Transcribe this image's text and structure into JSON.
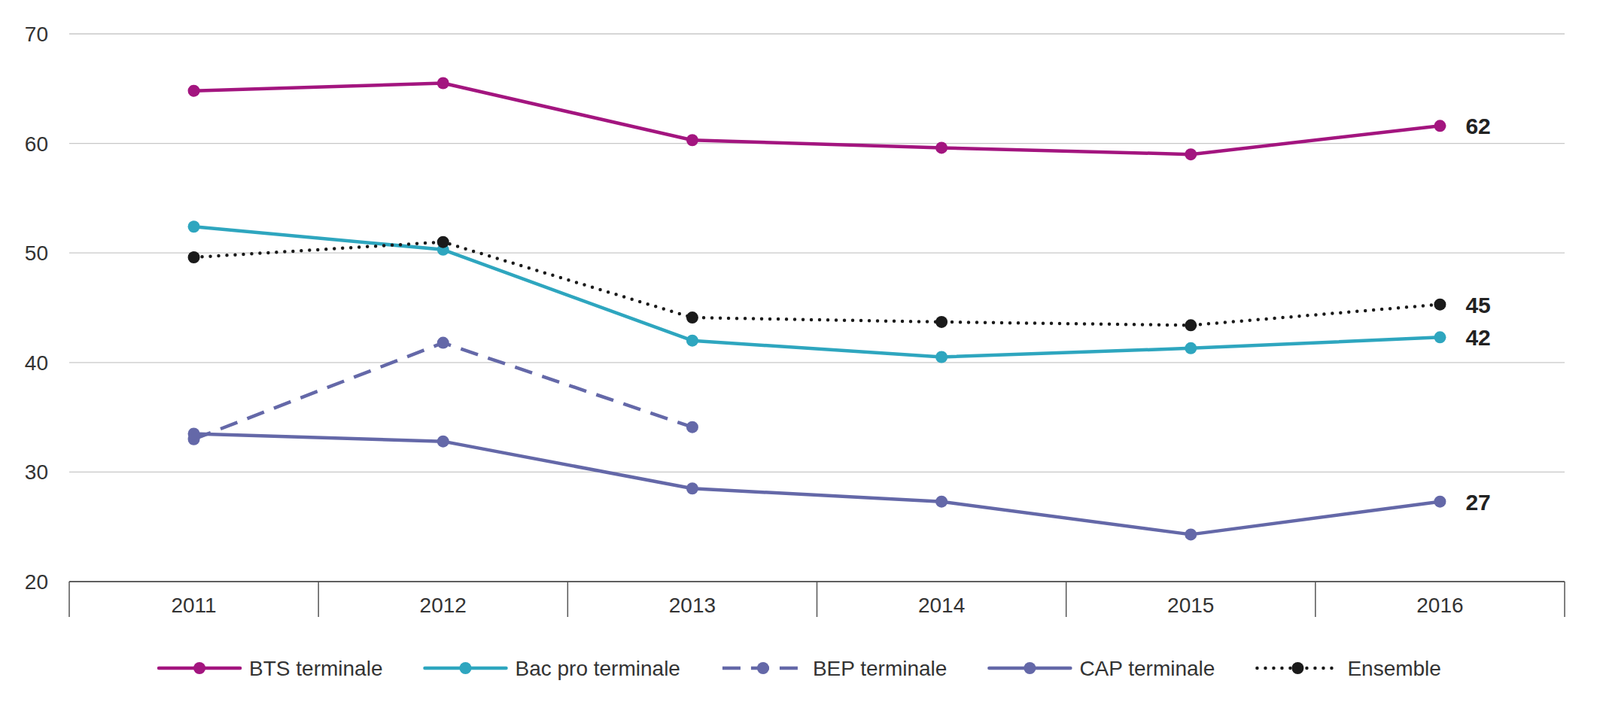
{
  "chart_data": {
    "type": "line",
    "categories": [
      "2011",
      "2012",
      "2013",
      "2014",
      "2015",
      "2016"
    ],
    "ylim": [
      20,
      70
    ],
    "yticks": [
      20,
      30,
      40,
      50,
      60,
      70
    ],
    "grid": true,
    "legend": "bottom",
    "marker": "circle",
    "data_labels": true,
    "series": [
      {
        "name": "BTS terminale",
        "color": "#a3157f",
        "line_style": "solid",
        "values": [
          64.8,
          65.5,
          60.3,
          59.6,
          59.0,
          61.6
        ],
        "value_labels": [
          null,
          null,
          null,
          null,
          null,
          "62"
        ]
      },
      {
        "name": "Bac pro terminale",
        "color": "#2ea6bf",
        "line_style": "solid",
        "values": [
          52.4,
          50.3,
          42.0,
          40.5,
          41.3,
          42.3
        ],
        "value_labels": [
          null,
          null,
          null,
          null,
          null,
          "42"
        ]
      },
      {
        "name": "BEP terminale",
        "color": "#6468a8",
        "line_style": "dashed",
        "values": [
          33.0,
          41.8,
          34.1,
          null,
          null,
          null
        ]
      },
      {
        "name": "CAP terminale",
        "color": "#6468a8",
        "line_style": "solid",
        "values": [
          33.5,
          32.8,
          28.5,
          27.3,
          24.3,
          27.3
        ],
        "value_labels": [
          null,
          null,
          null,
          null,
          null,
          "27"
        ]
      },
      {
        "name": "Ensemble",
        "color": "#1a1a1a",
        "line_style": "dotted",
        "values": [
          49.6,
          51.0,
          44.1,
          43.7,
          43.4,
          45.3
        ],
        "value_labels": [
          null,
          null,
          null,
          null,
          null,
          "45"
        ]
      }
    ]
  }
}
